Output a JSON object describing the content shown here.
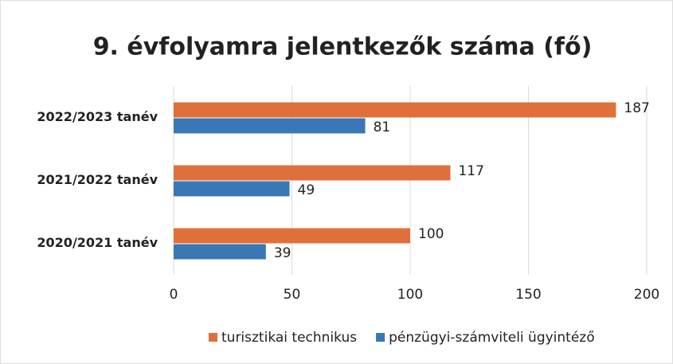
{
  "chart_data": {
    "type": "bar",
    "orientation": "horizontal",
    "title": "9. évfolyamra jelentkezők száma (fő)",
    "categories": [
      "2022/2023 tanév",
      "2021/2022 tanév",
      "2020/2021 tanév"
    ],
    "series": [
      {
        "name": "turisztikai technikus",
        "color": "#e0703a",
        "values": [
          187,
          117,
          100
        ]
      },
      {
        "name": "pénzügyi-számviteli ügyintéző",
        "color": "#3a78b5",
        "values": [
          81,
          49,
          39
        ]
      }
    ],
    "xlim": [
      0,
      200
    ],
    "xticks": [
      0,
      50,
      100,
      150,
      200
    ],
    "grid": true,
    "legend": "bottom"
  }
}
